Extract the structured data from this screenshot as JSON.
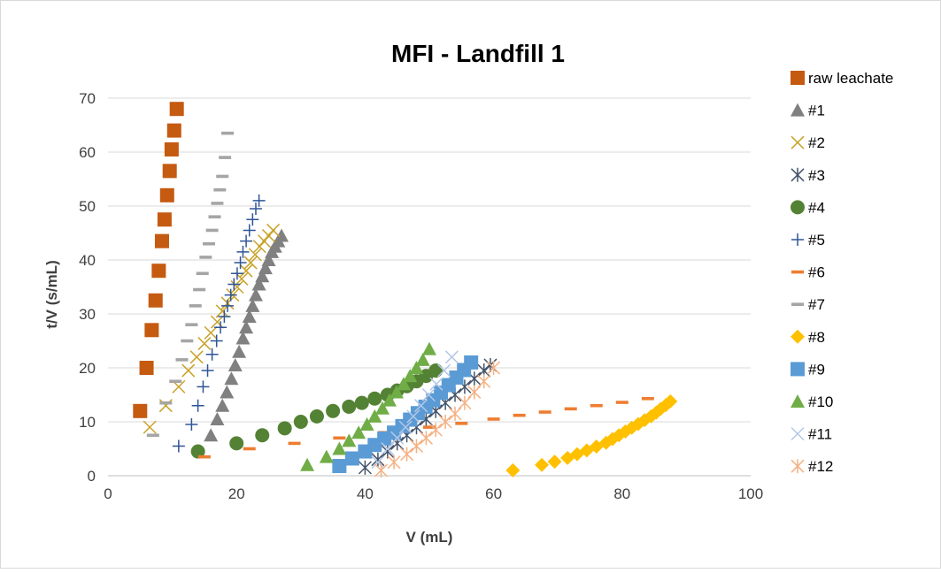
{
  "chart_data": {
    "type": "scatter",
    "title": "MFI - Landfill 1",
    "xlabel": "V (mL)",
    "ylabel": "t/V (s/mL)",
    "xlim": [
      0,
      100
    ],
    "ylim": [
      0,
      70
    ],
    "xticks": [
      "0",
      "20",
      "40",
      "60",
      "80",
      "100"
    ],
    "yticks": [
      "0",
      "10",
      "20",
      "30",
      "40",
      "50",
      "60",
      "70"
    ],
    "grid": "horizontal",
    "legend_position": "right",
    "series": [
      {
        "name": "raw leachate",
        "marker": "square",
        "color": "#C55A11",
        "x": [
          5.0,
          6.0,
          6.8,
          7.4,
          7.9,
          8.4,
          8.8,
          9.2,
          9.6,
          9.9,
          10.3,
          10.7
        ],
        "y": [
          12.0,
          20.0,
          27.0,
          32.5,
          38.0,
          43.5,
          47.5,
          52.0,
          56.5,
          60.5,
          64.0,
          68.0
        ]
      },
      {
        "name": "#1",
        "marker": "triangle",
        "color": "#808080",
        "x": [
          16.0,
          17.0,
          17.8,
          18.5,
          19.2,
          19.8,
          20.4,
          21.0,
          21.5,
          22.0,
          22.5,
          23.0,
          23.5,
          24.0,
          24.5,
          25.0,
          25.5,
          26.0,
          26.5,
          27.0
        ],
        "y": [
          7.5,
          10.5,
          13.0,
          15.5,
          18.0,
          20.5,
          23.0,
          25.5,
          27.5,
          29.5,
          31.5,
          33.5,
          35.5,
          37.0,
          38.5,
          40.0,
          41.5,
          42.5,
          43.5,
          44.5
        ]
      },
      {
        "name": "#2",
        "marker": "x",
        "color": "#C9A227",
        "x": [
          6.5,
          9.0,
          11.0,
          12.5,
          13.8,
          15.0,
          16.0,
          17.0,
          17.8,
          18.6,
          19.4,
          20.1,
          20.8,
          21.5,
          22.2,
          22.9,
          23.6,
          24.3,
          25.0,
          25.7
        ],
        "y": [
          9.0,
          13.0,
          16.5,
          19.5,
          22.0,
          24.5,
          26.5,
          28.5,
          30.5,
          32.0,
          33.5,
          35.0,
          36.5,
          38.0,
          39.5,
          41.0,
          42.5,
          43.5,
          44.5,
          45.5
        ]
      },
      {
        "name": "#3",
        "marker": "asterisk",
        "color": "#44546A",
        "x": [
          40.0,
          42.0,
          43.5,
          45.0,
          46.5,
          48.0,
          49.5,
          51.0,
          52.5,
          54.0,
          55.5,
          57.0,
          58.5,
          59.5
        ],
        "y": [
          1.5,
          3.0,
          4.5,
          6.0,
          7.5,
          9.0,
          10.5,
          12.0,
          13.5,
          15.0,
          16.5,
          18.0,
          19.5,
          20.5
        ]
      },
      {
        "name": "#4",
        "marker": "circle",
        "color": "#548235",
        "x": [
          14.0,
          20.0,
          24.0,
          27.5,
          30.0,
          32.5,
          35.0,
          37.5,
          39.5,
          41.5,
          43.5,
          45.0,
          46.5,
          48.0,
          49.5,
          51.0
        ],
        "y": [
          4.5,
          6.0,
          7.5,
          8.8,
          10.0,
          11.0,
          12.0,
          12.8,
          13.5,
          14.3,
          15.0,
          15.8,
          16.6,
          17.5,
          18.5,
          19.5
        ]
      },
      {
        "name": "#5",
        "marker": "plus",
        "color": "#2F5597",
        "x": [
          11.0,
          13.0,
          14.0,
          14.8,
          15.5,
          16.2,
          16.9,
          17.5,
          18.1,
          18.6,
          19.1,
          19.6,
          20.1,
          20.6,
          21.0,
          21.5,
          22.0,
          22.5,
          23.0,
          23.5
        ],
        "y": [
          5.5,
          9.5,
          13.0,
          16.5,
          19.5,
          22.5,
          25.0,
          27.5,
          29.5,
          31.5,
          33.5,
          35.5,
          37.5,
          39.5,
          41.5,
          43.5,
          45.5,
          47.5,
          49.5,
          51.0
        ]
      },
      {
        "name": "#6",
        "marker": "dash",
        "color": "#ED7D31",
        "x": [
          15.0,
          22.0,
          29.0,
          36.0,
          43.0,
          50.0,
          55.0,
          60.0,
          64.0,
          68.0,
          72.0,
          76.0,
          80.0,
          84.0
        ],
        "y": [
          3.5,
          5.0,
          6.0,
          7.0,
          8.0,
          9.0,
          9.7,
          10.5,
          11.2,
          11.8,
          12.4,
          13.0,
          13.6,
          14.3
        ]
      },
      {
        "name": "#7",
        "marker": "dash",
        "color": "#A5A5A5",
        "x": [
          7.0,
          9.0,
          10.5,
          11.5,
          12.3,
          13.0,
          13.6,
          14.2,
          14.7,
          15.2,
          15.7,
          16.2,
          16.6,
          17.0,
          17.4,
          17.8,
          18.2,
          18.6
        ],
        "y": [
          7.5,
          13.5,
          17.5,
          21.5,
          25.0,
          28.0,
          31.5,
          34.5,
          37.5,
          40.5,
          43.0,
          45.5,
          48.0,
          50.5,
          53.0,
          55.5,
          59.0,
          63.5
        ]
      },
      {
        "name": "#8",
        "marker": "diamond",
        "color": "#FFC000",
        "x": [
          63.0,
          67.5,
          69.5,
          71.5,
          73.0,
          74.5,
          76.0,
          77.5,
          78.5,
          79.5,
          80.5,
          81.5,
          82.5,
          83.5,
          84.5,
          85.3,
          86.0,
          86.8,
          87.5
        ],
        "y": [
          1.0,
          2.0,
          2.6,
          3.3,
          4.0,
          4.7,
          5.4,
          6.1,
          6.8,
          7.5,
          8.2,
          8.9,
          9.6,
          10.3,
          11.0,
          11.7,
          12.4,
          13.1,
          13.8
        ]
      },
      {
        "name": "#9",
        "marker": "square",
        "color": "#5B9BD5",
        "x": [
          36.0,
          38.0,
          40.0,
          41.5,
          43.0,
          44.5,
          45.8,
          47.0,
          48.2,
          49.4,
          50.6,
          51.8,
          53.0,
          54.2,
          55.4,
          56.5
        ],
        "y": [
          1.8,
          3.2,
          4.5,
          5.7,
          6.9,
          8.0,
          9.2,
          10.4,
          11.6,
          12.8,
          14.0,
          15.4,
          16.8,
          18.2,
          19.6,
          21.0
        ]
      },
      {
        "name": "#10",
        "marker": "triangle",
        "color": "#70AD47",
        "x": [
          31.0,
          34.0,
          36.0,
          37.5,
          39.0,
          40.3,
          41.5,
          42.7,
          43.8,
          44.9,
          46.0,
          47.0,
          48.0,
          49.0,
          50.0
        ],
        "y": [
          2.0,
          3.5,
          5.0,
          6.5,
          8.0,
          9.5,
          11.0,
          12.5,
          14.0,
          15.5,
          17.0,
          18.5,
          20.0,
          21.5,
          23.5
        ]
      },
      {
        "name": "#11",
        "marker": "x",
        "color": "#B4C7E7",
        "x": [
          42.0,
          43.5,
          45.0,
          46.3,
          47.5,
          48.7,
          49.9,
          51.1,
          52.3,
          53.5
        ],
        "y": [
          2.5,
          5.0,
          7.0,
          9.0,
          11.0,
          13.0,
          15.0,
          17.0,
          19.5,
          22.0
        ]
      },
      {
        "name": "#12",
        "marker": "asterisk",
        "color": "#F4B183",
        "x": [
          42.5,
          44.5,
          46.5,
          48.0,
          49.5,
          51.0,
          52.5,
          54.0,
          55.5,
          57.0,
          58.5,
          60.0
        ],
        "y": [
          1.0,
          2.5,
          4.0,
          5.5,
          7.0,
          8.5,
          10.0,
          11.5,
          13.5,
          15.5,
          17.5,
          20.0
        ]
      }
    ]
  }
}
